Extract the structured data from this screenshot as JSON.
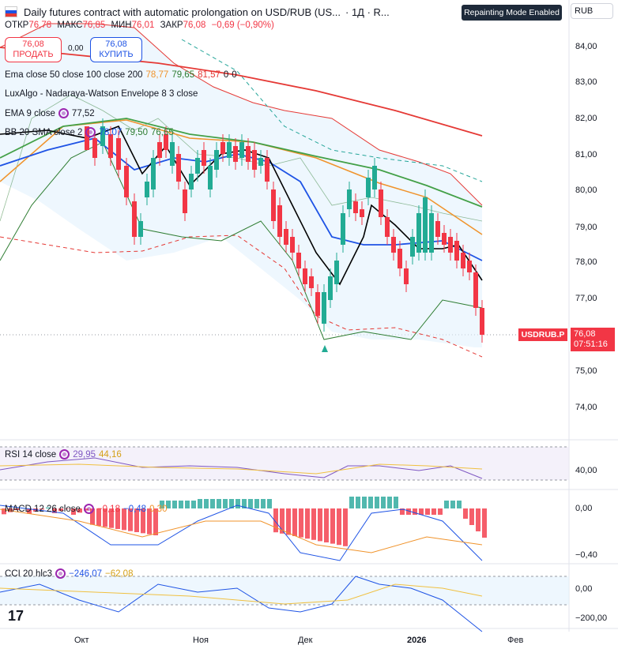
{
  "header": {
    "title": "Daily futures contract with automatic prolongation on USD/RUB (US...",
    "interval": "· 1Д · R...",
    "repainting_badge": "Repainting Mode Enabled",
    "currency": "RUB"
  },
  "ohlc": {
    "open_label": "ОТКР",
    "open": "76,78",
    "high_label": "МАКС",
    "high": "76,85",
    "low_label": "МИН",
    "low": "76,01",
    "close_label": "ЗАКР",
    "close": "76,08",
    "change": "−0,69 (−0,90%)"
  },
  "trade": {
    "sell_price": "76,08",
    "sell_label": "ПРОДАТЬ",
    "spread": "0,00",
    "buy_price": "76,08",
    "buy_label": "КУПИТЬ"
  },
  "indicators": [
    {
      "name": "Ema close 50 close 100 close 200",
      "values": [
        "78,77",
        "79,65",
        "81,57",
        "0",
        "0"
      ],
      "colors": [
        "#f0932b",
        "#2e7d32",
        "#e53935",
        "#131722",
        "#131722"
      ]
    },
    {
      "name": "LuxAlgo - Nadaraya-Watson Envelope 8 3 close",
      "values": [],
      "colors": []
    },
    {
      "name": "EMA 9 close",
      "values": [
        "77,52"
      ],
      "colors": [
        "#131722"
      ]
    },
    {
      "name": "BB 20 SMA close 2",
      "values": [
        "78,07",
        "79,50",
        "76,65"
      ],
      "colors": [
        "#1e53e5",
        "#2e7d32",
        "#2e7d32"
      ]
    }
  ],
  "price_axis": [
    "84,00",
    "83,00",
    "82,00",
    "81,00",
    "80,00",
    "79,00",
    "78,00",
    "77,00",
    "75,00",
    "74,00"
  ],
  "price_tag": {
    "symbol": "USDRUB.P",
    "price": "76,08",
    "countdown": "07:51:16"
  },
  "rsi": {
    "name": "RSI 14 close",
    "values": [
      "29,95",
      "44,16"
    ],
    "axis": [
      "40,00"
    ]
  },
  "macd": {
    "name": "MACD 12 26 close",
    "values": [
      "−0,18",
      "−0,48",
      "0,30"
    ],
    "axis": [
      "0,00",
      "−0,40"
    ]
  },
  "cci": {
    "name": "CCI 20 hlc3",
    "values": [
      "−246,07",
      "−62,08"
    ],
    "axis": [
      "0,00",
      "−200,00"
    ]
  },
  "time_axis": [
    "Окт",
    "Ноя",
    "Дек",
    "2026",
    "Фев"
  ],
  "colors": {
    "up": "#22ab94",
    "down": "#f23645",
    "ema50": "#f0932b",
    "ema100": "#43a047",
    "ema200": "#e53935",
    "bb": "#1e53e5",
    "ema9": "#000000",
    "nw": "#e53935"
  }
}
